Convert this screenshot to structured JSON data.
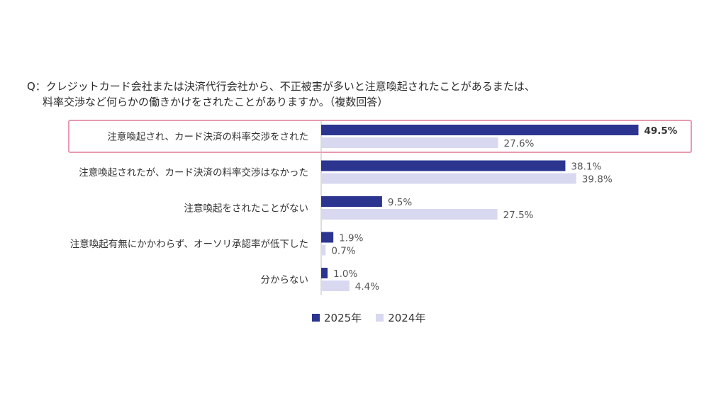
{
  "question": {
    "line1": "Q：クレジットカード会社または決済代行会社から、不正被害が多いと注意喚起されたことがあるまたは、",
    "line2": "料率交渉など何らかの働きかけをされたことがありますか。（複数回答）"
  },
  "colors": {
    "series_2025": "#2b3590",
    "series_2024": "#d8d8f0",
    "highlight_border": "#e79aaf"
  },
  "chart_data": {
    "type": "bar",
    "orientation": "horizontal",
    "categories": [
      "注意喚起され、カード決済の料率交渉をされた",
      "注意喚起されたが、カード決済の料率交渉はなかった",
      "注意喚起をされたことがない",
      "注意喚起有無にかかわらず、オーソリ承認率が低下した",
      "分からない"
    ],
    "series": [
      {
        "name": "2025年",
        "values": [
          49.5,
          38.1,
          9.5,
          1.9,
          1.0
        ],
        "labels": [
          "49.5%",
          "38.1%",
          "9.5%",
          "1.9%",
          "1.0%"
        ]
      },
      {
        "name": "2024年",
        "values": [
          27.6,
          39.8,
          27.5,
          0.7,
          4.4
        ],
        "labels": [
          "27.6%",
          "39.8%",
          "27.5%",
          "0.7%",
          "4.4%"
        ]
      }
    ],
    "xlim": [
      0,
      50
    ],
    "highlighted_category": "注意喚起され、カード決済の料率交渉をされた",
    "legend_position": "bottom",
    "grid": false
  }
}
